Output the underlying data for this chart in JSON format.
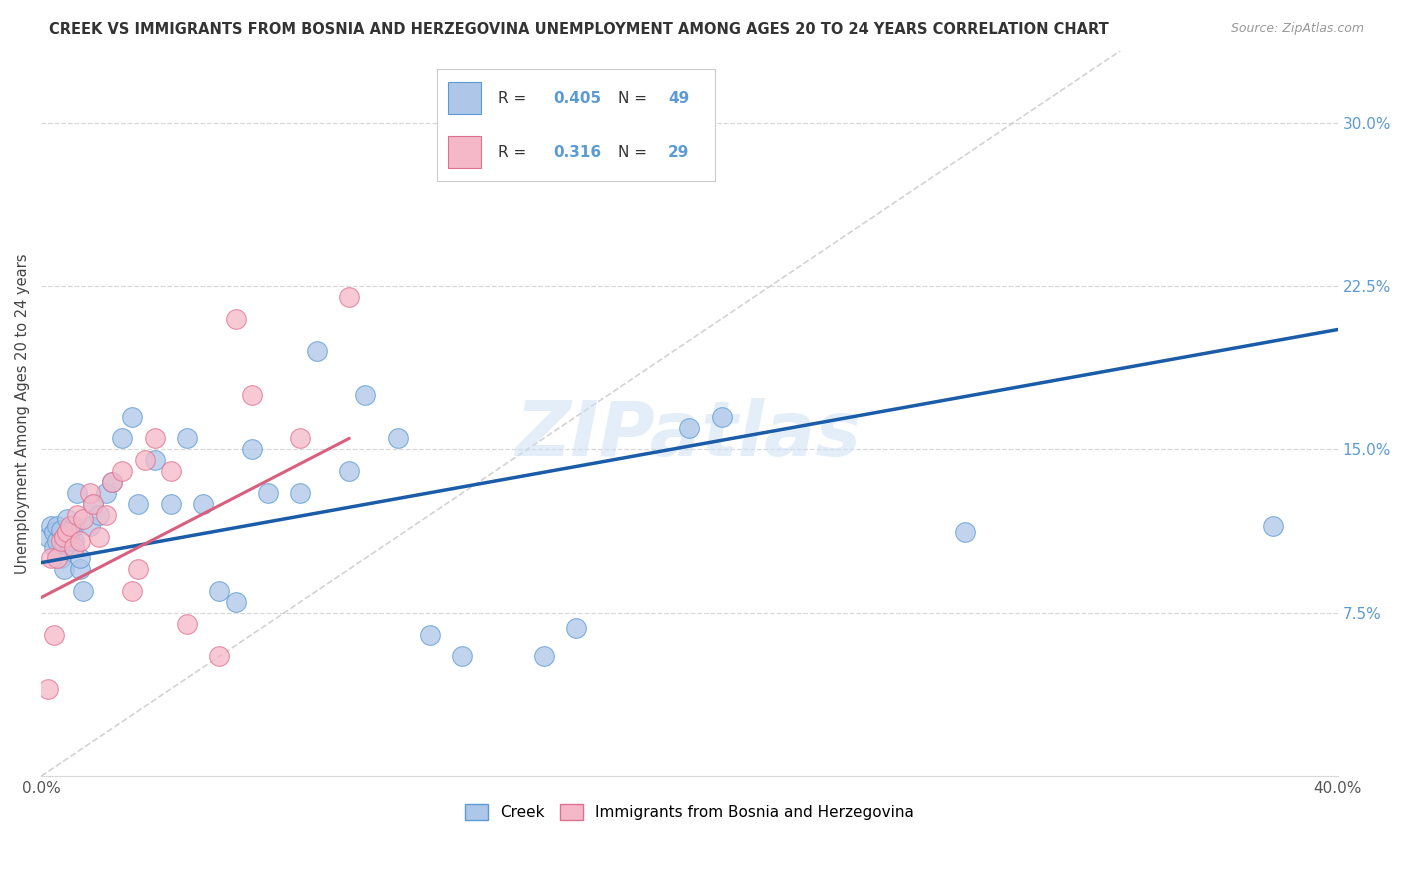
{
  "title": "CREEK VS IMMIGRANTS FROM BOSNIA AND HERZEGOVINA UNEMPLOYMENT AMONG AGES 20 TO 24 YEARS CORRELATION CHART",
  "source": "Source: ZipAtlas.com",
  "ylabel": "Unemployment Among Ages 20 to 24 years",
  "xlim": [
    0.0,
    0.4
  ],
  "ylim": [
    0.0,
    0.333
  ],
  "xticks": [
    0.0,
    0.05,
    0.1,
    0.15,
    0.2,
    0.25,
    0.3,
    0.35,
    0.4
  ],
  "xticklabels": [
    "0.0%",
    "",
    "",
    "",
    "",
    "",
    "",
    "",
    "40.0%"
  ],
  "yticks": [
    0.0,
    0.075,
    0.15,
    0.225,
    0.3
  ],
  "yticklabels": [
    "",
    "7.5%",
    "15.0%",
    "22.5%",
    "30.0%"
  ],
  "creek_color": "#aec6e8",
  "creek_edge": "#5b9bd5",
  "bosnia_color": "#f4b8c8",
  "bosnia_edge": "#e07090",
  "creek_R": 0.405,
  "creek_N": 49,
  "bosnia_R": 0.316,
  "bosnia_N": 29,
  "creek_line_color": "#1a5ca8",
  "bosnia_line_color": "#d95f7f",
  "diag_line_color": "#c8c8c8",
  "watermark": "ZIPatlas",
  "creek_x": [
    0.002,
    0.003,
    0.004,
    0.004,
    0.005,
    0.005,
    0.006,
    0.006,
    0.007,
    0.007,
    0.008,
    0.008,
    0.009,
    0.009,
    0.01,
    0.01,
    0.011,
    0.012,
    0.012,
    0.013,
    0.015,
    0.016,
    0.018,
    0.02,
    0.022,
    0.025,
    0.028,
    0.03,
    0.035,
    0.04,
    0.045,
    0.05,
    0.055,
    0.06,
    0.065,
    0.07,
    0.08,
    0.085,
    0.095,
    0.1,
    0.11,
    0.12,
    0.13,
    0.155,
    0.165,
    0.2,
    0.21,
    0.285,
    0.38
  ],
  "creek_y": [
    0.11,
    0.115,
    0.105,
    0.112,
    0.108,
    0.115,
    0.1,
    0.113,
    0.095,
    0.107,
    0.11,
    0.118,
    0.105,
    0.112,
    0.108,
    0.115,
    0.13,
    0.095,
    0.1,
    0.085,
    0.115,
    0.125,
    0.12,
    0.13,
    0.135,
    0.155,
    0.165,
    0.125,
    0.145,
    0.125,
    0.155,
    0.125,
    0.085,
    0.08,
    0.15,
    0.13,
    0.13,
    0.195,
    0.14,
    0.175,
    0.155,
    0.065,
    0.055,
    0.055,
    0.068,
    0.16,
    0.165,
    0.112,
    0.115
  ],
  "bosnia_x": [
    0.002,
    0.003,
    0.004,
    0.005,
    0.006,
    0.007,
    0.008,
    0.009,
    0.01,
    0.011,
    0.012,
    0.013,
    0.015,
    0.016,
    0.018,
    0.02,
    0.022,
    0.025,
    0.028,
    0.03,
    0.032,
    0.035,
    0.04,
    0.045,
    0.055,
    0.06,
    0.065,
    0.08,
    0.095
  ],
  "bosnia_y": [
    0.04,
    0.1,
    0.065,
    0.1,
    0.108,
    0.11,
    0.112,
    0.115,
    0.105,
    0.12,
    0.108,
    0.118,
    0.13,
    0.125,
    0.11,
    0.12,
    0.135,
    0.14,
    0.085,
    0.095,
    0.145,
    0.155,
    0.14,
    0.07,
    0.055,
    0.21,
    0.175,
    0.155,
    0.22
  ],
  "creek_line_x": [
    0.0,
    0.4
  ],
  "creek_line_y": [
    0.098,
    0.205
  ],
  "bosnia_line_x": [
    0.0,
    0.095
  ],
  "bosnia_line_y": [
    0.082,
    0.155
  ]
}
